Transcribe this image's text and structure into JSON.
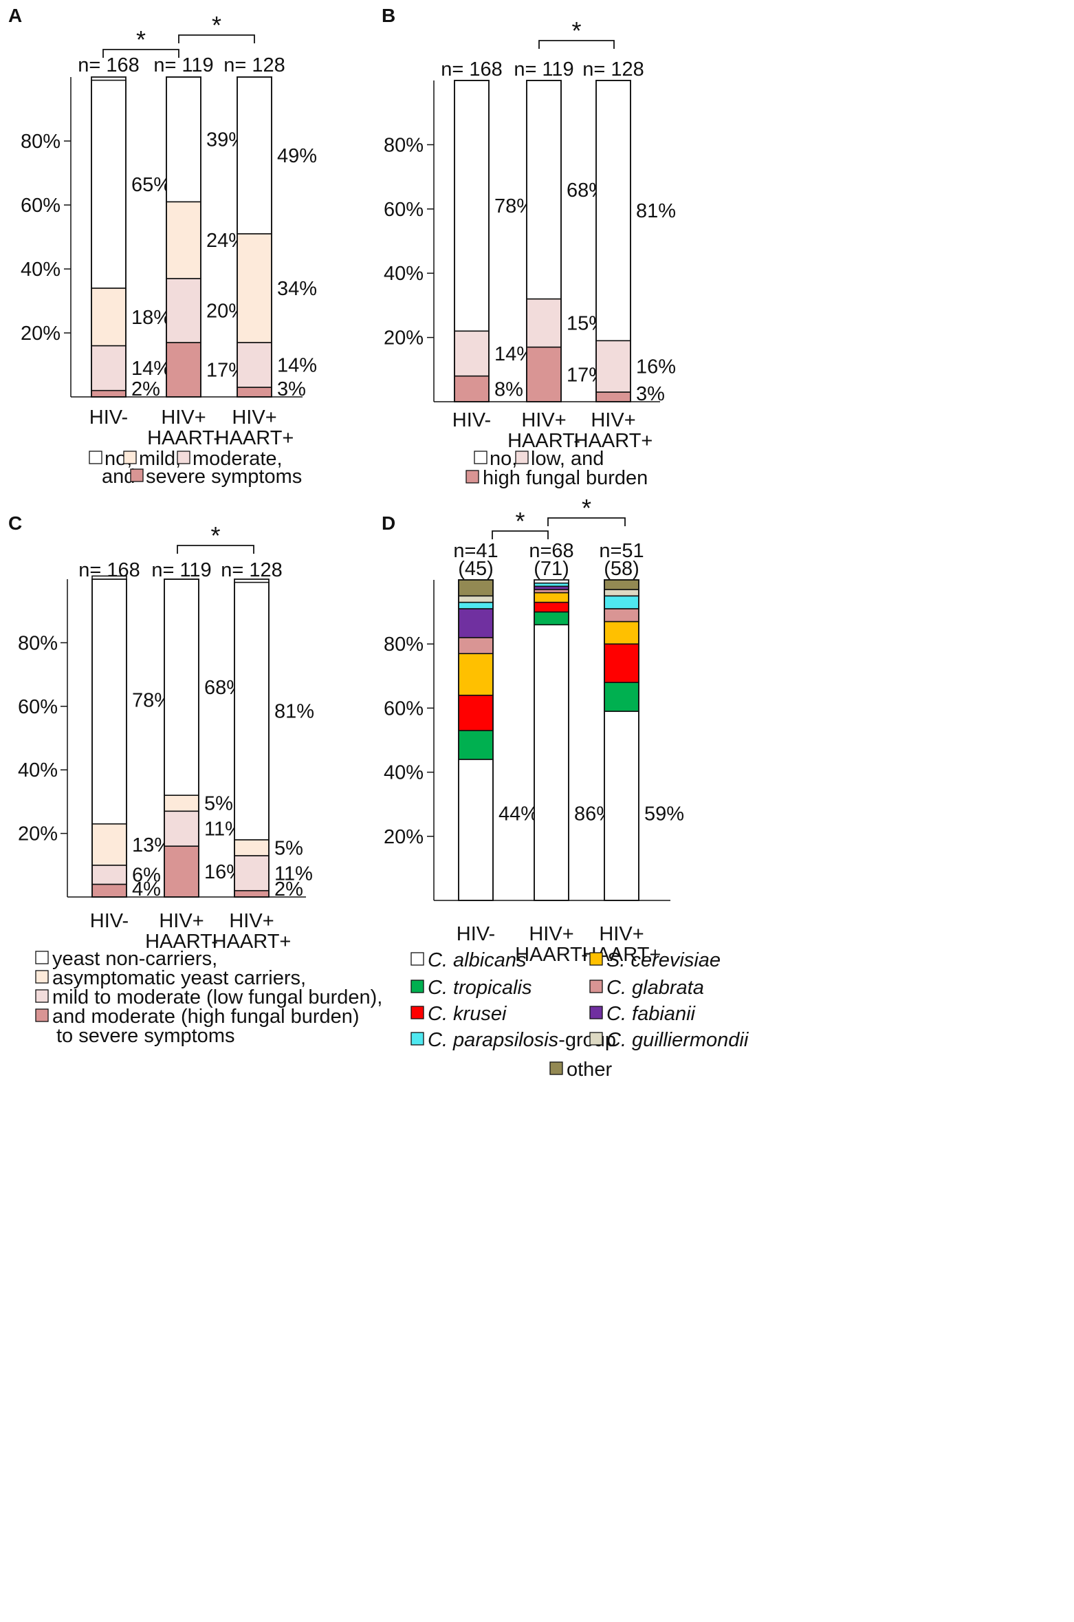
{
  "chart_data": [
    {
      "panel": "A",
      "type": "bar",
      "stacked": true,
      "yticks": [
        "20%",
        "40%",
        "60%",
        "80%"
      ],
      "categories": [
        [
          "HIV-"
        ],
        [
          "HIV+",
          "HAART-"
        ],
        [
          "HIV+",
          "HAART+"
        ]
      ],
      "n_labels": [
        "n= 168",
        "n= 119",
        "n= 128"
      ],
      "series": [
        {
          "name": "severe symptoms",
          "color": "#d99594",
          "values": [
            2,
            17,
            3
          ]
        },
        {
          "name": "moderate",
          "color": "#f2dcdb",
          "values": [
            14,
            20,
            14
          ]
        },
        {
          "name": "mild",
          "color": "#fdeada",
          "values": [
            18,
            24,
            34
          ]
        },
        {
          "name": "no",
          "color": "#ffffff",
          "values": [
            65,
            39,
            49
          ]
        }
      ],
      "significance": [
        {
          "from": 0,
          "to": 1,
          "label": "*"
        },
        {
          "from": 1,
          "to": 2,
          "label": "*"
        }
      ],
      "legend_lines": [
        [
          {
            "s": 3,
            "t": "no,"
          },
          {
            "s": 2,
            "t": "mild,"
          },
          {
            "s": 1,
            "t": "moderate,"
          }
        ],
        [
          {
            "pre": "and",
            "s": 0,
            "t": "severe symptoms"
          }
        ]
      ]
    },
    {
      "panel": "B",
      "type": "bar",
      "stacked": true,
      "yticks": [
        "20%",
        "40%",
        "60%",
        "80%"
      ],
      "categories": [
        [
          "HIV-"
        ],
        [
          "HIV+",
          "HAART-"
        ],
        [
          "HIV+",
          "HAART+"
        ]
      ],
      "n_labels": [
        "n= 168",
        "n= 119",
        "n= 128"
      ],
      "series": [
        {
          "name": "high fungal burden",
          "color": "#d99594",
          "values": [
            8,
            17,
            3
          ]
        },
        {
          "name": "low",
          "color": "#f2dcdb",
          "values": [
            14,
            15,
            16
          ]
        },
        {
          "name": "no",
          "color": "#ffffff",
          "values": [
            78,
            68,
            81
          ]
        }
      ],
      "significance": [
        {
          "from": 1,
          "to": 2,
          "label": "*"
        }
      ],
      "legend_lines": [
        [
          {
            "s": 2,
            "t": "no,"
          },
          {
            "s": 1,
            "t": "low, and"
          }
        ],
        [
          {
            "s": 0,
            "t": "high fungal burden"
          }
        ]
      ]
    },
    {
      "panel": "C",
      "type": "bar",
      "stacked": true,
      "yticks": [
        "20%",
        "40%",
        "60%",
        "80%"
      ],
      "categories": [
        [
          "HIV-"
        ],
        [
          "HIV+",
          "HAART-"
        ],
        [
          "HIV+",
          "HAART+"
        ]
      ],
      "n_labels": [
        "n= 168",
        "n= 119",
        "n= 128"
      ],
      "series": [
        {
          "name": "moderate (high fungal burden) to severe symptoms",
          "color": "#d99594",
          "values": [
            4,
            16,
            2
          ]
        },
        {
          "name": "mild to moderate (low fungal burden)",
          "color": "#f2dcdb",
          "values": [
            6,
            11,
            11
          ]
        },
        {
          "name": "asymptomatic yeast carriers",
          "color": "#fdeada",
          "values": [
            13,
            5,
            5
          ]
        },
        {
          "name": "yeast non-carriers",
          "color": "#ffffff",
          "values": [
            78,
            68,
            81
          ]
        }
      ],
      "significance": [
        {
          "from": 1,
          "to": 2,
          "label": "*"
        }
      ],
      "legend_lines": [
        [
          {
            "s": 3,
            "t": "yeast non-carriers,"
          }
        ],
        [
          {
            "s": 2,
            "t": "asymptomatic yeast carriers,"
          }
        ],
        [
          {
            "s": 1,
            "t": "mild to moderate (low fungal burden),"
          }
        ],
        [
          {
            "s": 0,
            "t": " and  moderate (high fungal burden)"
          }
        ],
        [
          {
            "t": "to severe symptoms"
          }
        ]
      ]
    },
    {
      "panel": "D",
      "type": "bar",
      "stacked": true,
      "yticks": [
        "20%",
        "40%",
        "60%",
        "80%"
      ],
      "categories": [
        [
          "HIV-"
        ],
        [
          "HIV+",
          "HAART-"
        ],
        [
          "HIV+",
          "HAART+"
        ]
      ],
      "n_labels": [
        "n=41",
        "n=68",
        "n=51"
      ],
      "n_sub_labels": [
        "(45)",
        "(71)",
        "(58)"
      ],
      "series": [
        {
          "name": "C. albicans",
          "color": "#ffffff",
          "values": [
            44,
            86,
            59
          ],
          "label": true
        },
        {
          "name": "C. tropicalis",
          "color": "#00b050",
          "values": [
            9,
            4,
            9
          ]
        },
        {
          "name": "C. krusei",
          "color": "#ff0000",
          "values": [
            11,
            3,
            12
          ]
        },
        {
          "name": "S. cerevisiae",
          "color": "#ffc000",
          "values": [
            13,
            3,
            7
          ]
        },
        {
          "name": "C. glabrata",
          "color": "#d99594",
          "values": [
            5,
            1,
            4
          ]
        },
        {
          "name": "C. fabianii",
          "color": "#7030a0",
          "values": [
            9,
            1,
            0
          ]
        },
        {
          "name": "C. parapsilosis-group",
          "color": "#4fe8f0",
          "values": [
            2,
            1,
            4
          ]
        },
        {
          "name": "C. guilliermondii",
          "color": "#ddd9c3",
          "values": [
            2,
            0,
            2
          ]
        },
        {
          "name": "other",
          "color": "#938953",
          "values": [
            5,
            0,
            3
          ]
        }
      ],
      "significance": [
        {
          "from": 0,
          "to": 1,
          "label": "*"
        },
        {
          "from": 1,
          "to": 2,
          "label": "*"
        }
      ],
      "legend_items": [
        {
          "s": 0,
          "parts": [
            {
              "t": "C. albicans",
              "i": true
            }
          ]
        },
        {
          "s": 3,
          "parts": [
            {
              "t": "S. cerevisiae",
              "i": true
            }
          ]
        },
        {
          "s": 1,
          "parts": [
            {
              "t": "C. tropicalis",
              "i": true
            }
          ]
        },
        {
          "s": 4,
          "parts": [
            {
              "t": "C. glabrata",
              "i": true
            }
          ]
        },
        {
          "s": 2,
          "parts": [
            {
              "t": "C. krusei",
              "i": true
            }
          ]
        },
        {
          "s": 5,
          "parts": [
            {
              "t": "C. fabianii",
              "i": true
            }
          ]
        },
        {
          "s": 6,
          "parts": [
            {
              "t": "C. parapsilosis",
              "i": true
            },
            {
              "t": "-group",
              "i": false
            }
          ]
        },
        {
          "s": 7,
          "parts": [
            {
              "t": "C. guilliermondii",
              "i": true
            }
          ]
        },
        {
          "s": 8,
          "parts": [
            {
              "t": "other",
              "i": false
            }
          ]
        }
      ]
    }
  ]
}
